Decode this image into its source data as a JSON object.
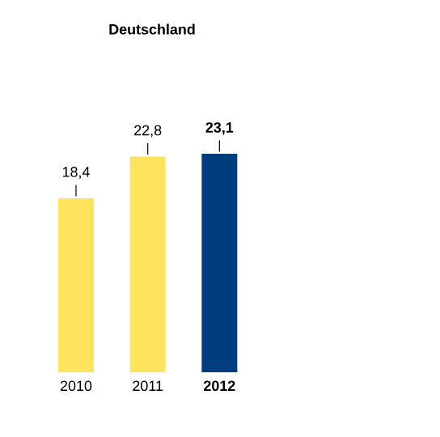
{
  "chart_data": {
    "type": "bar",
    "title": "Deutschland",
    "categories": [
      "2010",
      "2011",
      "**2012**"
    ],
    "values": [
      18.4,
      22.8,
      23.1
    ],
    "value_labels": [
      "18,4",
      "22,8",
      "**23,1**"
    ],
    "colors": [
      "#fde35e",
      "#fde35e",
      "#003d7c"
    ]
  }
}
